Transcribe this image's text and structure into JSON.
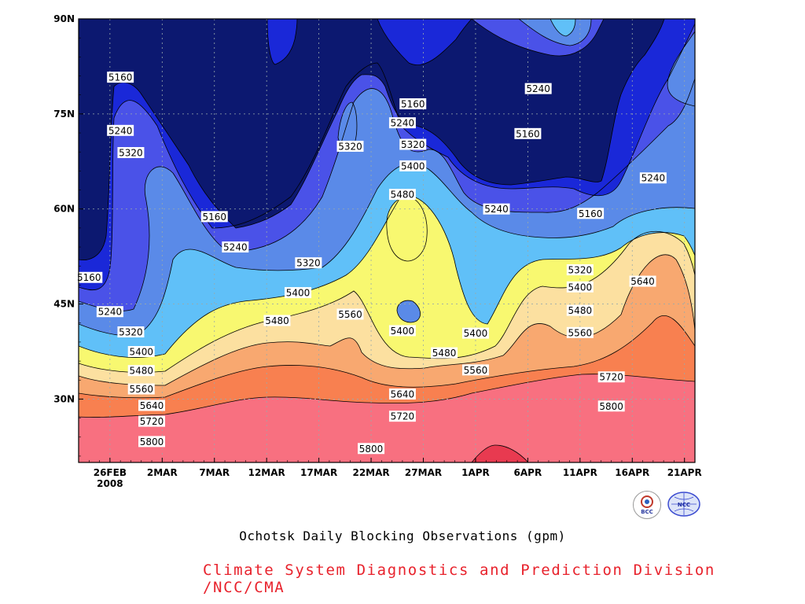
{
  "chart_data": {
    "type": "heatmap",
    "title": "Ochotsk Daily Blocking Observations (gpm)",
    "credit": "Climate System Diagnostics and Prediction Division /NCC/CMA",
    "x_tick_labels": [
      "26FEB",
      "2MAR",
      "7MAR",
      "12MAR",
      "17MAR",
      "22MAR",
      "27MAR",
      "1APR",
      "6APR",
      "11APR",
      "16APR",
      "21APR"
    ],
    "x_year_label": "2008",
    "x_range": [
      "2008-02-23",
      "2008-04-22"
    ],
    "y_tick_labels": [
      "30N",
      "45N",
      "60N",
      "75N",
      "90N"
    ],
    "y_range": [
      20,
      90
    ],
    "grid": true,
    "contour_levels": [
      5160,
      5240,
      5320,
      5400,
      5480,
      5560,
      5640,
      5720,
      5800
    ],
    "colors": {
      "lt5160": "#0c1870",
      "5160": "#1a28d8",
      "5240": "#4a52e8",
      "5320": "#5a8ae8",
      "5400": "#60c0f8",
      "5480": "#f8f870",
      "5560": "#fce0a0",
      "5640": "#f8a870",
      "5720": "#f88050",
      "5800": "#f87080",
      "5880": "#e83a50"
    },
    "contour_labels": [
      {
        "value": "5160",
        "date": "2008-02-27",
        "lat": 80.8
      },
      {
        "value": "5240",
        "date": "2008-02-27",
        "lat": 72.4
      },
      {
        "value": "5320",
        "date": "2008-02-28",
        "lat": 68.9
      },
      {
        "value": "5160",
        "date": "2008-03-07",
        "lat": 58.8
      },
      {
        "value": "5240",
        "date": "2008-03-09",
        "lat": 54.0
      },
      {
        "value": "5320",
        "date": "2008-03-20",
        "lat": 69.9
      },
      {
        "value": "5320",
        "date": "2008-03-16",
        "lat": 51.5
      },
      {
        "value": "5400",
        "date": "2008-03-15",
        "lat": 46.8
      },
      {
        "value": "5480",
        "date": "2008-03-13",
        "lat": 42.4
      },
      {
        "value": "5560",
        "date": "2008-03-20",
        "lat": 43.4
      },
      {
        "value": "5160",
        "date": "2008-03-26",
        "lat": 76.6
      },
      {
        "value": "5240",
        "date": "2008-03-25",
        "lat": 73.6
      },
      {
        "value": "5320",
        "date": "2008-03-26",
        "lat": 70.2
      },
      {
        "value": "5400",
        "date": "2008-03-26",
        "lat": 66.8
      },
      {
        "value": "5480",
        "date": "2008-03-25",
        "lat": 62.3
      },
      {
        "value": "5400",
        "date": "2008-03-25",
        "lat": 40.8
      },
      {
        "value": "5480",
        "date": "2008-03-29",
        "lat": 37.3
      },
      {
        "value": "5400",
        "date": "2008-04-01",
        "lat": 40.4
      },
      {
        "value": "5560",
        "date": "2008-04-01",
        "lat": 34.6
      },
      {
        "value": "5640",
        "date": "2008-03-25",
        "lat": 30.8
      },
      {
        "value": "5720",
        "date": "2008-03-25",
        "lat": 27.3
      },
      {
        "value": "5800",
        "date": "2008-03-22",
        "lat": 22.2
      },
      {
        "value": "5160",
        "date": "2008-02-24",
        "lat": 49.2
      },
      {
        "value": "5240",
        "date": "2008-02-26",
        "lat": 43.8
      },
      {
        "value": "5320",
        "date": "2008-02-28",
        "lat": 40.6
      },
      {
        "value": "5400",
        "date": "2008-02-29",
        "lat": 37.5
      },
      {
        "value": "5480",
        "date": "2008-02-29",
        "lat": 34.5
      },
      {
        "value": "5560",
        "date": "2008-02-29",
        "lat": 31.6
      },
      {
        "value": "5640",
        "date": "2008-03-01",
        "lat": 29.0
      },
      {
        "value": "5720",
        "date": "2008-03-01",
        "lat": 26.5
      },
      {
        "value": "5800",
        "date": "2008-03-01",
        "lat": 23.3
      },
      {
        "value": "5240",
        "date": "2008-04-07",
        "lat": 79.0
      },
      {
        "value": "5160",
        "date": "2008-04-06",
        "lat": 71.9
      },
      {
        "value": "5240",
        "date": "2008-04-03",
        "lat": 60.0
      },
      {
        "value": "5160",
        "date": "2008-04-12",
        "lat": 59.3
      },
      {
        "value": "5240",
        "date": "2008-04-18",
        "lat": 64.9
      },
      {
        "value": "5320",
        "date": "2008-04-11",
        "lat": 50.4
      },
      {
        "value": "5400",
        "date": "2008-04-11",
        "lat": 47.7
      },
      {
        "value": "5480",
        "date": "2008-04-11",
        "lat": 44.0
      },
      {
        "value": "5560",
        "date": "2008-04-11",
        "lat": 40.5
      },
      {
        "value": "5640",
        "date": "2008-04-17",
        "lat": 48.6
      },
      {
        "value": "5720",
        "date": "2008-04-14",
        "lat": 33.5
      },
      {
        "value": "5800",
        "date": "2008-04-14",
        "lat": 28.9
      }
    ]
  },
  "logos": {
    "bcc_text": "BCC",
    "ncc_text": "NCC"
  }
}
